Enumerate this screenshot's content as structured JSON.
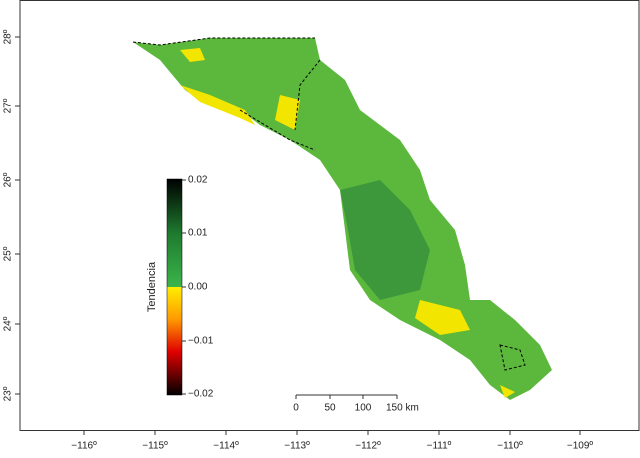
{
  "map": {
    "x_ticks": [
      "−116º",
      "−115º",
      "−114º",
      "−113º",
      "−112º",
      "−111º",
      "−110º",
      "−109º"
    ],
    "y_ticks": [
      "28º",
      "27º",
      "26º",
      "25º",
      "24º",
      "23º"
    ],
    "legend": {
      "title": "Tendencia",
      "ticks": [
        "0.02",
        "0.01",
        "0.00",
        "−0.01",
        "−0.02"
      ]
    },
    "scale_bar": {
      "ticks": [
        "0",
        "50",
        "100",
        "150 km"
      ]
    }
  }
}
